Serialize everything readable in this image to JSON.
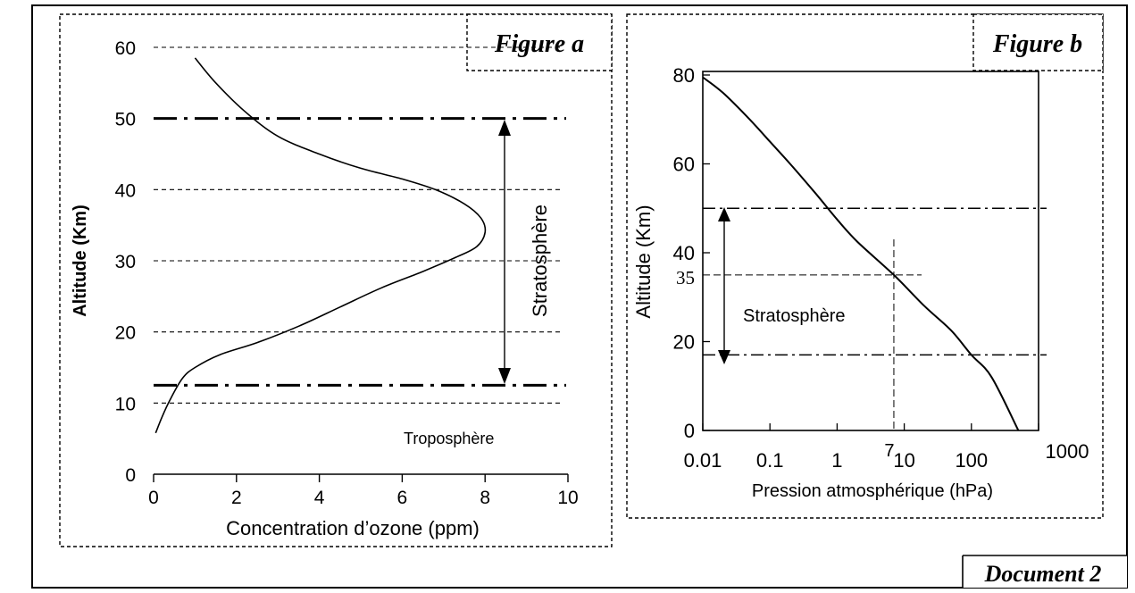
{
  "document": {
    "label": "Document 2"
  },
  "chart_data": [
    {
      "type": "line",
      "label": "Figure a",
      "xlabel": "Concentration d’ozone (ppm)",
      "ylabel": "Altitude (Km)",
      "xlim": [
        0,
        10
      ],
      "ylim": [
        0,
        60
      ],
      "x_ticks": [
        0,
        2,
        4,
        6,
        8,
        10
      ],
      "y_ticks": [
        0,
        10,
        20,
        30,
        40,
        50,
        60
      ],
      "gridlines_y": [
        10,
        20,
        30,
        40,
        60
      ],
      "boundaries_y": [
        12.5,
        50
      ],
      "series": [
        {
          "x": [
            0.05,
            0.2,
            0.4,
            0.7,
            1.0,
            1.6,
            2.5,
            3.5,
            4.5,
            5.5,
            6.5,
            7.3,
            7.8,
            8.0,
            7.9,
            7.5,
            6.8,
            6.0,
            5.0,
            4.0,
            3.0,
            2.2,
            1.5,
            1.0
          ],
          "y": [
            5.8,
            8.0,
            10.5,
            13.5,
            15.0,
            16.8,
            18.5,
            20.8,
            23.5,
            26.2,
            28.5,
            30.5,
            32.0,
            34.0,
            36.0,
            38.0,
            40.0,
            41.5,
            43.0,
            45.0,
            47.5,
            51.0,
            55.0,
            58.5
          ]
        }
      ],
      "annotations": {
        "region": "Stratosphère",
        "lower": "Troposphère"
      }
    },
    {
      "type": "line",
      "label": "Figure b",
      "xscale": "log",
      "xlabel": "Pression atmosphérique (hPa)",
      "ylabel": "Altitude (Km)",
      "xlim": [
        0.01,
        1000
      ],
      "ylim": [
        0,
        80
      ],
      "x_ticks": [
        0.01,
        0.1,
        1,
        10,
        100,
        1000
      ],
      "x_tick_labels": [
        "0.01",
        "0.1",
        "1",
        "10",
        "100",
        "1000"
      ],
      "y_ticks": [
        0,
        20,
        40,
        60,
        80
      ],
      "extra_y_tick": {
        "value": 35,
        "label": "35"
      },
      "extra_x_tick": {
        "value": 7,
        "label": "7"
      },
      "boundaries_y": [
        17,
        50
      ],
      "series": [
        {
          "x": [
            0.01,
            0.02,
            0.05,
            0.1,
            0.2,
            0.5,
            1,
            2,
            7,
            20,
            50,
            100,
            200,
            500
          ],
          "y": [
            79.5,
            76,
            70,
            65,
            60,
            53,
            47.5,
            42.5,
            35,
            28,
            22.5,
            17,
            12,
            0
          ]
        }
      ],
      "annotations": {
        "region": "Stratosphère"
      }
    }
  ]
}
